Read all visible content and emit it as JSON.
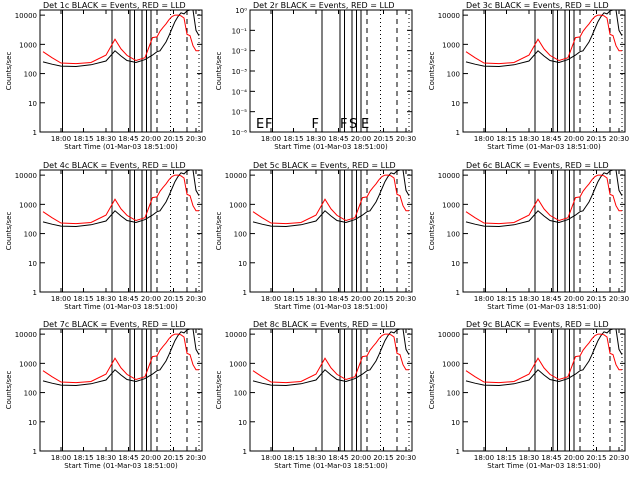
{
  "chart_data": {
    "type": "line",
    "common": {
      "xlabel": "Start Time (01-Mar-03 18:51:00)",
      "ylabel": "Counts/sec",
      "x_ticks": [
        "18:00",
        "18:15",
        "18:30",
        "18:45",
        "20:00",
        "20:15",
        "20:30"
      ],
      "x_tick_minutes": [
        0,
        15,
        30,
        45,
        60,
        75,
        90
      ],
      "xlim_minutes": [
        -14,
        94
      ],
      "ylim": [
        1,
        15000
      ],
      "y_ticks": [
        "1",
        "10",
        "100",
        "1000",
        "10000"
      ],
      "y_tick_values": [
        1,
        10,
        100,
        1000,
        10000
      ],
      "solid_vlines_minutes": [
        1,
        34,
        46,
        49,
        54,
        57,
        60
      ],
      "dashed_vlines_minutes": [
        64,
        84
      ],
      "dotted_vlines_minutes": [
        73,
        92
      ],
      "series_names": [
        "Events (black)",
        "LLD (red)"
      ],
      "colors": {
        "events": "#000000",
        "lld": "#ff0000"
      },
      "event_series_minutes": [
        -12,
        -6,
        0,
        10,
        20,
        30,
        36,
        40,
        44,
        50,
        56,
        61,
        64,
        66,
        68,
        70,
        72,
        74,
        76,
        78,
        80,
        82,
        84,
        86,
        88,
        90,
        92
      ],
      "events_values": [
        250,
        210,
        180,
        175,
        200,
        270,
        600,
        400,
        280,
        240,
        300,
        430,
        560,
        600,
        850,
        1200,
        2000,
        3500,
        6000,
        9000,
        12000,
        11000,
        14000,
        15000,
        15000,
        3000,
        2000
      ],
      "lld_series_minutes": [
        -12,
        -6,
        0,
        10,
        20,
        30,
        36,
        40,
        44,
        50,
        56,
        61,
        64,
        66,
        68,
        70,
        72,
        74,
        76,
        78,
        80,
        82,
        84,
        86,
        88,
        90,
        92
      ],
      "lld_values": [
        560,
        350,
        230,
        220,
        240,
        430,
        1500,
        700,
        420,
        280,
        350,
        1700,
        1800,
        2800,
        3800,
        5000,
        7000,
        9000,
        10000,
        10000,
        9500,
        8000,
        2200,
        2000,
        900,
        600,
        600
      ]
    },
    "panels": [
      {
        "title": "Det 1c BLACK = Events, RED = LLD",
        "has_data": true
      },
      {
        "title": "Det 2r BLACK = Events, RED = LLD",
        "has_data": false,
        "ylim": [
          1e-06,
          1
        ],
        "y_ticks": [
          "10⁻⁶",
          "10⁻⁵",
          "10⁻⁴",
          "10⁻³",
          "10⁻²",
          "10⁻¹",
          "10⁰"
        ],
        "flags": [
          "E",
          "F",
          "F",
          "F",
          "S",
          "E"
        ],
        "flag_minutes": [
          -10,
          -4,
          27,
          46,
          52,
          60
        ]
      },
      {
        "title": "Det 3c BLACK = Events, RED = LLD",
        "has_data": true
      },
      {
        "title": "Det 4c BLACK = Events, RED = LLD",
        "has_data": true
      },
      {
        "title": "Det 5c BLACK = Events, RED = LLD",
        "has_data": true
      },
      {
        "title": "Det 6c BLACK = Events, RED = LLD",
        "has_data": true
      },
      {
        "title": "Det 7c BLACK = Events, RED = LLD",
        "has_data": true
      },
      {
        "title": "Det 8c BLACK = Events, RED = LLD",
        "has_data": true
      },
      {
        "title": "Det 9c BLACK = Events, RED = LLD",
        "has_data": true
      }
    ]
  }
}
